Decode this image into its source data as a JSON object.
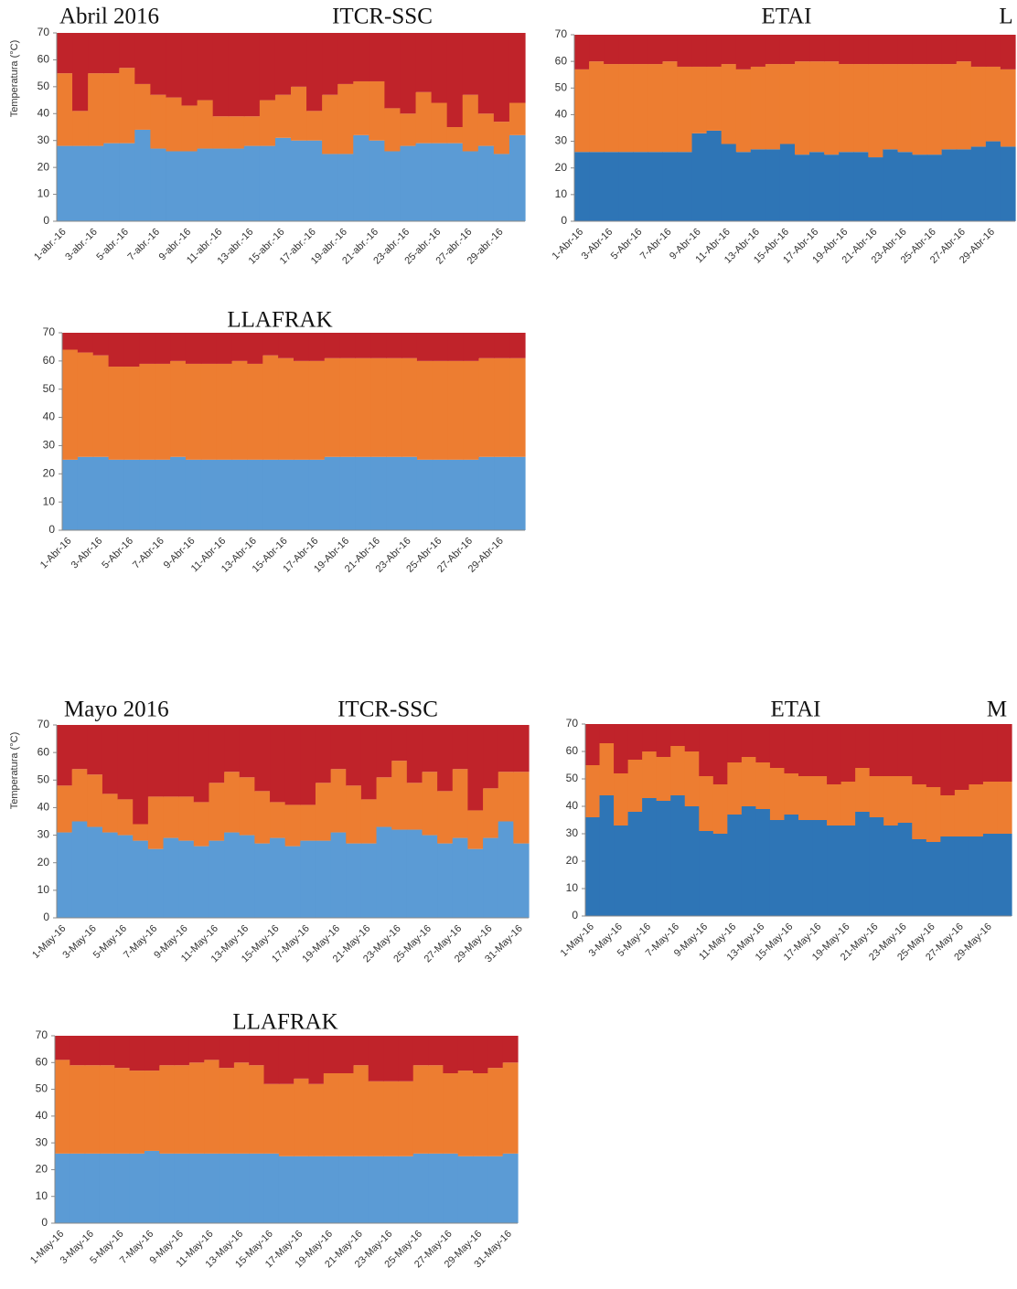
{
  "chart_data": [
    {
      "type": "bar",
      "heading": "Abril 2016",
      "title": "ITCR-SSC",
      "y_label": "Temperatura (°C)",
      "categories": [
        "1-abr.-16",
        null,
        "3-abr.-16",
        null,
        "5-abr.-16",
        null,
        "7-abr.-16",
        null,
        "9-abr.-16",
        null,
        "11-abr.-16",
        null,
        "13-abr.-16",
        null,
        "15-abr.-16",
        null,
        "17-abr.-16",
        null,
        "19-abr.-16",
        null,
        "21-abr.-16",
        null,
        "23-abr.-16",
        null,
        "25-abr.-16",
        null,
        "27-abr.-16",
        null,
        "29-abr.-16",
        null
      ],
      "series": [
        {
          "color": "#5b9bd5",
          "values": [
            28,
            28,
            28,
            29,
            29,
            34,
            27,
            26,
            26,
            27,
            27,
            27,
            28,
            28,
            31,
            30,
            30,
            25,
            25,
            32,
            30,
            26,
            28,
            29,
            29,
            29,
            26,
            28,
            25,
            32
          ]
        },
        {
          "color": "#ed7d31",
          "values": [
            27,
            13,
            27,
            26,
            28,
            17,
            20,
            20,
            17,
            18,
            12,
            12,
            11,
            17,
            16,
            20,
            11,
            22,
            26,
            20,
            22,
            16,
            12,
            19,
            15,
            6,
            21,
            12,
            12,
            12
          ]
        },
        {
          "color": "#c0232a",
          "values": [
            15,
            29,
            15,
            15,
            13,
            19,
            23,
            24,
            27,
            25,
            31,
            31,
            31,
            25,
            23,
            20,
            29,
            23,
            19,
            18,
            18,
            28,
            30,
            22,
            26,
            35,
            23,
            30,
            33,
            26
          ]
        }
      ],
      "ylim": [
        0,
        70
      ],
      "yticks": [
        0,
        10,
        20,
        30,
        40,
        50,
        60,
        70
      ]
    },
    {
      "type": "bar",
      "title": "ETAI",
      "corner_label": "L",
      "categories": [
        "1-Abr-16",
        null,
        "3-Abr-16",
        null,
        "5-Abr-16",
        null,
        "7-Abr-16",
        null,
        "9-Abr-16",
        null,
        "11-Abr-16",
        null,
        "13-Abr-16",
        null,
        "15-Abr-16",
        null,
        "17-Abr-16",
        null,
        "19-Abr-16",
        null,
        "21-Abr-16",
        null,
        "23-Abr-16",
        null,
        "25-Abr-16",
        null,
        "27-Abr-16",
        null,
        "29-Abr-16",
        null
      ],
      "series": [
        {
          "color": "#2e75b6",
          "values": [
            26,
            26,
            26,
            26,
            26,
            26,
            26,
            26,
            33,
            34,
            29,
            26,
            27,
            27,
            29,
            25,
            26,
            25,
            26,
            26,
            24,
            27,
            26,
            25,
            25,
            27,
            27,
            28,
            30,
            28
          ]
        },
        {
          "color": "#ed7d31",
          "values": [
            31,
            34,
            33,
            33,
            33,
            33,
            34,
            32,
            25,
            24,
            30,
            31,
            31,
            32,
            30,
            35,
            34,
            35,
            33,
            33,
            35,
            32,
            33,
            34,
            34,
            32,
            33,
            30,
            28,
            29
          ]
        },
        {
          "color": "#c0232a",
          "values": [
            13,
            10,
            11,
            11,
            11,
            11,
            10,
            12,
            12,
            12,
            11,
            13,
            12,
            11,
            11,
            10,
            10,
            10,
            11,
            11,
            11,
            11,
            11,
            11,
            11,
            11,
            10,
            12,
            12,
            13
          ]
        }
      ],
      "ylim": [
        0,
        70
      ],
      "yticks": [
        0,
        10,
        20,
        30,
        40,
        50,
        60,
        70
      ]
    },
    {
      "type": "bar",
      "title": "LLAFRAK",
      "categories": [
        "1-Abr-16",
        null,
        "3-Abr-16",
        null,
        "5-Abr-16",
        null,
        "7-Abr-16",
        null,
        "9-Abr-16",
        null,
        "11-Abr-16",
        null,
        "13-Abr-16",
        null,
        "15-Abr-16",
        null,
        "17-Abr-16",
        null,
        "19-Abr-16",
        null,
        "21-Abr-16",
        null,
        "23-Abr-16",
        null,
        "25-Abr-16",
        null,
        "27-Abr-16",
        null,
        "29-Abr-16",
        null
      ],
      "series": [
        {
          "color": "#5b9bd5",
          "values": [
            25,
            26,
            26,
            25,
            25,
            25,
            25,
            26,
            25,
            25,
            25,
            25,
            25,
            25,
            25,
            25,
            25,
            26,
            26,
            26,
            26,
            26,
            26,
            25,
            25,
            25,
            25,
            26,
            26,
            26
          ]
        },
        {
          "color": "#ed7d31",
          "values": [
            39,
            37,
            36,
            33,
            33,
            34,
            34,
            34,
            34,
            34,
            34,
            35,
            34,
            37,
            36,
            35,
            35,
            35,
            35,
            35,
            35,
            35,
            35,
            35,
            35,
            35,
            35,
            35,
            35,
            35
          ]
        },
        {
          "color": "#c0232a",
          "values": [
            6,
            7,
            8,
            12,
            12,
            11,
            11,
            10,
            11,
            11,
            11,
            10,
            11,
            8,
            9,
            10,
            10,
            9,
            9,
            9,
            9,
            9,
            9,
            10,
            10,
            10,
            10,
            9,
            9,
            9
          ]
        }
      ],
      "ylim": [
        0,
        70
      ],
      "yticks": [
        0,
        10,
        20,
        30,
        40,
        50,
        60,
        70
      ]
    },
    {
      "type": "bar",
      "heading": "Mayo 2016",
      "title": "ITCR-SSC",
      "y_label": "Temperatura (°C)",
      "categories": [
        "1-May-16",
        null,
        "3-May-16",
        null,
        "5-May-16",
        null,
        "7-May-16",
        null,
        "9-May-16",
        null,
        "11-May-16",
        null,
        "13-May-16",
        null,
        "15-May-16",
        null,
        "17-May-16",
        null,
        "19-May-16",
        null,
        "21-May-16",
        null,
        "23-May-16",
        null,
        "25-May-16",
        null,
        "27-May-16",
        null,
        "29-May-16",
        null,
        "31-May-16"
      ],
      "series": [
        {
          "color": "#5b9bd5",
          "values": [
            31,
            35,
            33,
            31,
            30,
            28,
            25,
            29,
            28,
            26,
            28,
            31,
            30,
            27,
            29,
            26,
            28,
            28,
            31,
            27,
            27,
            33,
            32,
            32,
            30,
            27,
            29,
            25,
            29,
            35,
            27
          ]
        },
        {
          "color": "#ed7d31",
          "values": [
            17,
            19,
            19,
            14,
            13,
            6,
            19,
            15,
            16,
            16,
            21,
            22,
            21,
            19,
            13,
            15,
            13,
            21,
            23,
            21,
            16,
            18,
            25,
            17,
            23,
            19,
            25,
            14,
            18,
            18,
            26
          ]
        },
        {
          "color": "#c0232a",
          "values": [
            22,
            16,
            18,
            25,
            27,
            36,
            26,
            26,
            26,
            28,
            21,
            17,
            19,
            24,
            28,
            29,
            29,
            21,
            16,
            22,
            27,
            19,
            13,
            21,
            17,
            24,
            16,
            31,
            23,
            17,
            17
          ]
        }
      ],
      "ylim": [
        0,
        70
      ],
      "yticks": [
        0,
        10,
        20,
        30,
        40,
        50,
        60,
        70
      ]
    },
    {
      "type": "bar",
      "title": "ETAI",
      "corner_label": "M",
      "categories": [
        "1-May-16",
        null,
        "3-May-16",
        null,
        "5-May-16",
        null,
        "7-May-16",
        null,
        "9-May-16",
        null,
        "11-May-16",
        null,
        "13-May-16",
        null,
        "15-May-16",
        null,
        "17-May-16",
        null,
        "19-May-16",
        null,
        "21-May-16",
        null,
        "23-May-16",
        null,
        "25-May-16",
        null,
        "27-May-16",
        null,
        "29-May-16",
        null
      ],
      "series": [
        {
          "color": "#2e75b6",
          "values": [
            36,
            44,
            33,
            38,
            43,
            42,
            44,
            40,
            31,
            30,
            37,
            40,
            39,
            35,
            37,
            35,
            35,
            33,
            33,
            38,
            36,
            33,
            34,
            28,
            27,
            29,
            29,
            29,
            30,
            30
          ]
        },
        {
          "color": "#ed7d31",
          "values": [
            19,
            19,
            19,
            19,
            17,
            16,
            18,
            20,
            20,
            18,
            19,
            18,
            17,
            19,
            15,
            16,
            16,
            15,
            16,
            16,
            15,
            18,
            17,
            20,
            20,
            15,
            17,
            19,
            19,
            19
          ]
        },
        {
          "color": "#c0232a",
          "values": [
            15,
            7,
            18,
            13,
            10,
            12,
            8,
            10,
            19,
            22,
            14,
            12,
            14,
            16,
            18,
            19,
            19,
            22,
            21,
            16,
            19,
            19,
            19,
            22,
            23,
            26,
            24,
            22,
            21,
            21
          ]
        }
      ],
      "ylim": [
        0,
        70
      ],
      "yticks": [
        0,
        10,
        20,
        30,
        40,
        50,
        60,
        70
      ]
    },
    {
      "type": "bar",
      "title": "LLAFRAK",
      "categories": [
        "1-May-16",
        null,
        "3-May-16",
        null,
        "5-May-16",
        null,
        "7-May-16",
        null,
        "9-May-16",
        null,
        "11-May-16",
        null,
        "13-May-16",
        null,
        "15-May-16",
        null,
        "17-May-16",
        null,
        "19-May-16",
        null,
        "21-May-16",
        null,
        "23-May-16",
        null,
        "25-May-16",
        null,
        "27-May-16",
        null,
        "29-May-16",
        null,
        "31-May-16"
      ],
      "series": [
        {
          "color": "#5b9bd5",
          "values": [
            26,
            26,
            26,
            26,
            26,
            26,
            27,
            26,
            26,
            26,
            26,
            26,
            26,
            26,
            26,
            25,
            25,
            25,
            25,
            25,
            25,
            25,
            25,
            25,
            26,
            26,
            26,
            25,
            25,
            25,
            26
          ]
        },
        {
          "color": "#ed7d31",
          "values": [
            35,
            33,
            33,
            33,
            32,
            31,
            30,
            33,
            33,
            34,
            35,
            32,
            34,
            33,
            26,
            27,
            29,
            27,
            31,
            31,
            34,
            28,
            28,
            28,
            33,
            33,
            30,
            32,
            31,
            33,
            34
          ]
        },
        {
          "color": "#c0232a",
          "values": [
            9,
            11,
            11,
            11,
            12,
            13,
            13,
            11,
            11,
            10,
            9,
            12,
            10,
            11,
            18,
            18,
            16,
            18,
            14,
            14,
            11,
            17,
            17,
            17,
            11,
            11,
            14,
            13,
            14,
            12,
            10
          ]
        }
      ],
      "ylim": [
        0,
        70
      ],
      "yticks": [
        0,
        10,
        20,
        30,
        40,
        50,
        60,
        70
      ]
    }
  ]
}
